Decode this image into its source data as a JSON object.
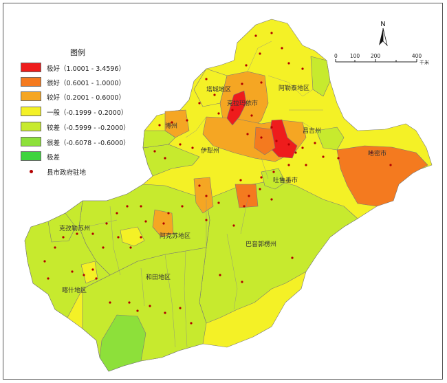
{
  "legend": {
    "title": "图例",
    "items": [
      {
        "label": "极好（1.0001 - 3.4596）",
        "color": "#ee1c1c"
      },
      {
        "label": "很好（0.6001 - 1.0000）",
        "color": "#f47a1f"
      },
      {
        "label": "较好（0.2001 - 0.6000）",
        "color": "#f5a623"
      },
      {
        "label": "一般（-0.1999 - 0.2000）",
        "color": "#f4f126"
      },
      {
        "label": "较差（-0.5999 - -0.2000）",
        "color": "#c7ea2e"
      },
      {
        "label": "很差（-0.6078 - -0.6000）",
        "color": "#8de03a"
      },
      {
        "label": "极差",
        "color": "#3fd43f"
      }
    ],
    "point_label": "县市政府驻地",
    "point_color": "#b30000"
  },
  "scale": {
    "ticks": [
      "0",
      "100",
      "200",
      "400"
    ],
    "unit": "千米"
  },
  "north": {
    "label": "N"
  },
  "regions": [
    {
      "label": "阿勒泰地区"
    },
    {
      "label": "克拉玛依市"
    },
    {
      "label": "昌吉州"
    },
    {
      "label": "哈密市"
    },
    {
      "label": "吐鲁番市"
    },
    {
      "label": "巴音郭楞州"
    },
    {
      "label": "阿克苏地区"
    },
    {
      "label": "克孜勒苏州"
    },
    {
      "label": "喀什地区"
    },
    {
      "label": "和田地区"
    },
    {
      "label": "塔城地区"
    },
    {
      "label": "博州"
    },
    {
      "label": "伊犁州"
    }
  ]
}
